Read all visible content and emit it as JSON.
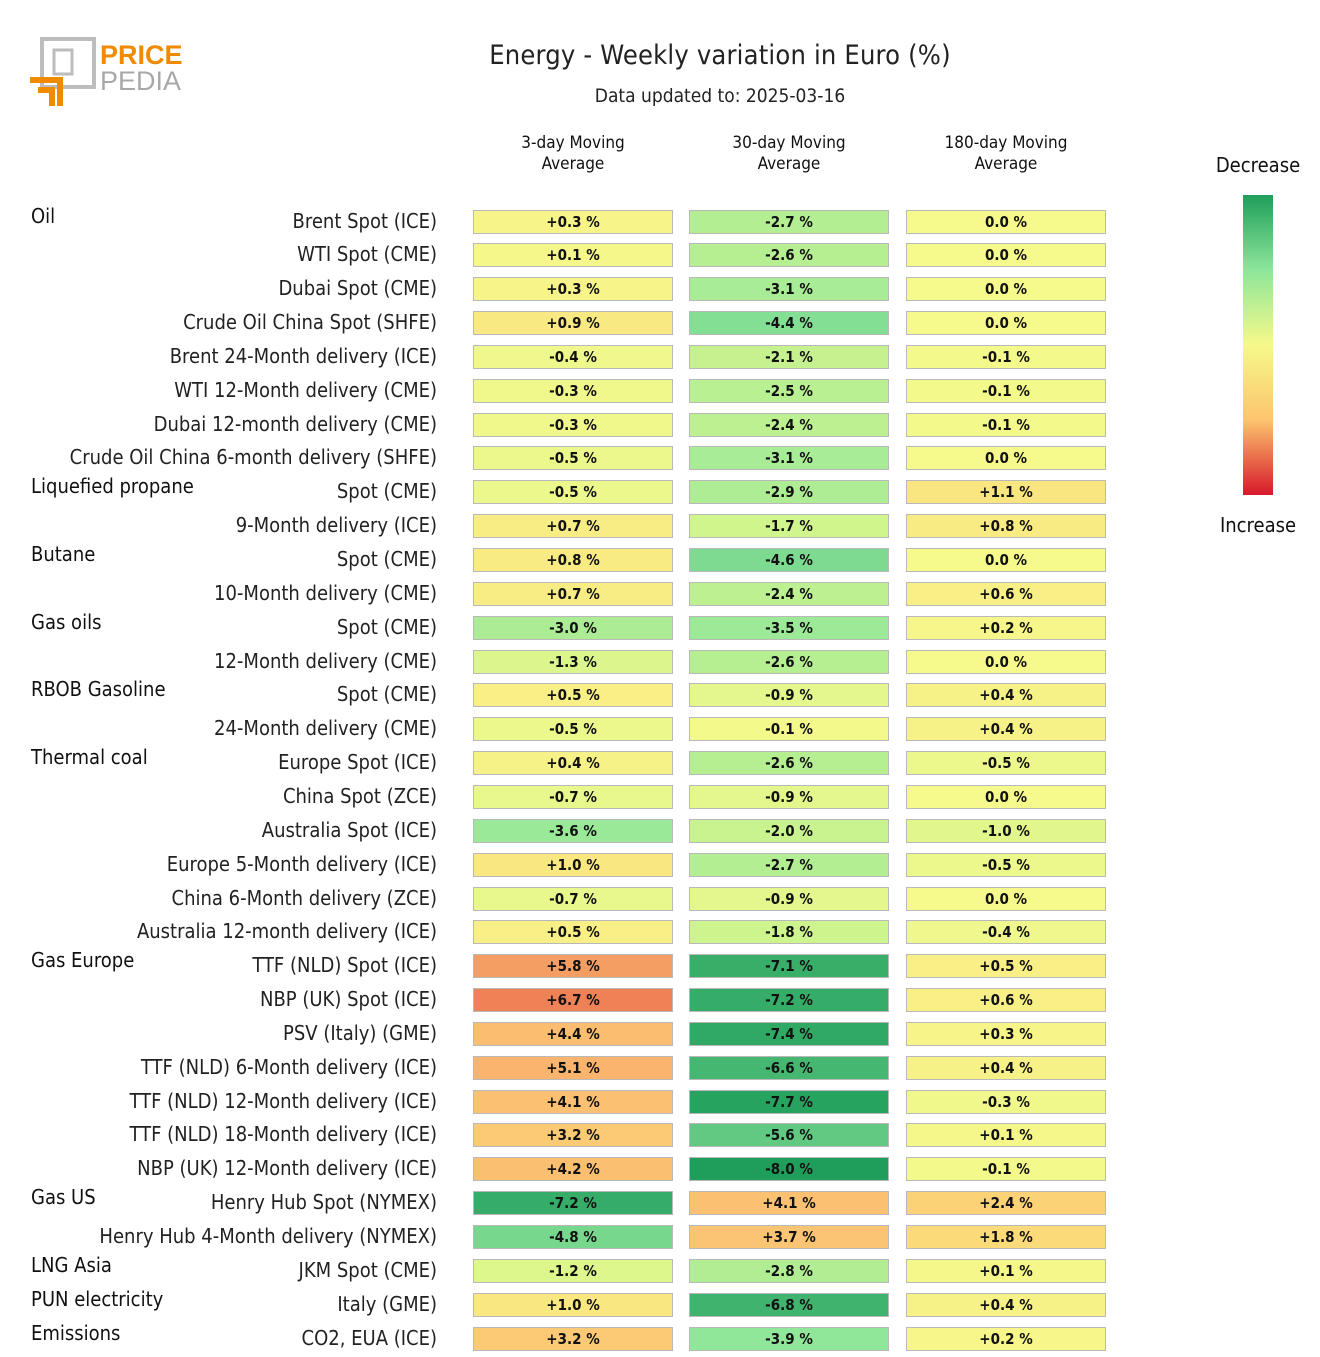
{
  "logo": {
    "text_top": "PRICE",
    "text_bottom": "PEDIA"
  },
  "title": "Energy - Weekly variation in Euro (%)",
  "subtitle": "Data updated to: 2025-03-16",
  "legend": {
    "top": "Decrease",
    "bottom": "Increase"
  },
  "chart_data": {
    "type": "heatmap",
    "title": "Energy - Weekly variation in Euro (%)",
    "subtitle": "Data updated to: 2025-03-16",
    "columns": [
      "3-day Moving Average",
      "30-day Moving Average",
      "180-day Moving Average"
    ],
    "column_lines": [
      [
        "3-day Moving",
        "Average"
      ],
      [
        "30-day Moving",
        "Average"
      ],
      [
        "180-day Moving",
        "Average"
      ]
    ],
    "unit": "%",
    "colorscale": {
      "negative": "Decrease (green)",
      "positive": "Increase (red)"
    },
    "rows": [
      {
        "group": "Oil",
        "label": "Brent Spot (ICE)",
        "values": [
          0.3,
          -2.7,
          0.0
        ]
      },
      {
        "group": "",
        "label": "WTI Spot (CME)",
        "values": [
          0.1,
          -2.6,
          0.0
        ]
      },
      {
        "group": "",
        "label": "Dubai Spot (CME)",
        "values": [
          0.3,
          -3.1,
          0.0
        ]
      },
      {
        "group": "",
        "label": "Crude Oil China Spot (SHFE)",
        "values": [
          0.9,
          -4.4,
          0.0
        ]
      },
      {
        "group": "",
        "label": "Brent 24-Month delivery (ICE)",
        "values": [
          -0.4,
          -2.1,
          -0.1
        ]
      },
      {
        "group": "",
        "label": "WTI 12-Month delivery (CME)",
        "values": [
          -0.3,
          -2.5,
          -0.1
        ]
      },
      {
        "group": "",
        "label": "Dubai 12-month delivery (CME)",
        "values": [
          -0.3,
          -2.4,
          -0.1
        ]
      },
      {
        "group": "",
        "label": "Crude Oil China 6-month delivery (SHFE)",
        "values": [
          -0.5,
          -3.1,
          0.0
        ]
      },
      {
        "group": "Liquefied propane",
        "label": "Spot (CME)",
        "values": [
          -0.5,
          -2.9,
          1.1
        ]
      },
      {
        "group": "",
        "label": "9-Month delivery (ICE)",
        "values": [
          0.7,
          -1.7,
          0.8
        ]
      },
      {
        "group": "Butane",
        "label": "Spot (CME)",
        "values": [
          0.8,
          -4.6,
          0.0
        ]
      },
      {
        "group": "",
        "label": "10-Month delivery (CME)",
        "values": [
          0.7,
          -2.4,
          0.6
        ]
      },
      {
        "group": "Gas oils",
        "label": "Spot (CME)",
        "values": [
          -3.0,
          -3.5,
          0.2
        ]
      },
      {
        "group": "",
        "label": "12-Month delivery (CME)",
        "values": [
          -1.3,
          -2.6,
          0.0
        ]
      },
      {
        "group": "RBOB Gasoline",
        "label": "Spot (CME)",
        "values": [
          0.5,
          -0.9,
          0.4
        ]
      },
      {
        "group": "",
        "label": "24-Month delivery (CME)",
        "values": [
          -0.5,
          -0.1,
          0.4
        ]
      },
      {
        "group": "Thermal coal",
        "label": "Europe Spot (ICE)",
        "values": [
          0.4,
          -2.6,
          -0.5
        ]
      },
      {
        "group": "",
        "label": "China Spot (ZCE)",
        "values": [
          -0.7,
          -0.9,
          0.0
        ]
      },
      {
        "group": "",
        "label": "Australia Spot (ICE)",
        "values": [
          -3.6,
          -2.0,
          -1.0
        ]
      },
      {
        "group": "",
        "label": "Europe 5-Month delivery (ICE)",
        "values": [
          1.0,
          -2.7,
          -0.5
        ]
      },
      {
        "group": "",
        "label": "China 6-Month delivery (ZCE)",
        "values": [
          -0.7,
          -0.9,
          0.0
        ]
      },
      {
        "group": "",
        "label": "Australia 12-month delivery (ICE)",
        "values": [
          0.5,
          -1.8,
          -0.4
        ]
      },
      {
        "group": "Gas Europe",
        "label": "TTF (NLD) Spot (ICE)",
        "values": [
          5.8,
          -7.1,
          0.5
        ]
      },
      {
        "group": "",
        "label": "NBP (UK) Spot (ICE)",
        "values": [
          6.7,
          -7.2,
          0.6
        ]
      },
      {
        "group": "",
        "label": "PSV (Italy) (GME)",
        "values": [
          4.4,
          -7.4,
          0.3
        ]
      },
      {
        "group": "",
        "label": "TTF (NLD) 6-Month delivery (ICE)",
        "values": [
          5.1,
          -6.6,
          0.4
        ]
      },
      {
        "group": "",
        "label": "TTF (NLD) 12-Month delivery (ICE)",
        "values": [
          4.1,
          -7.7,
          -0.3
        ]
      },
      {
        "group": "",
        "label": "TTF (NLD) 18-Month delivery (ICE)",
        "values": [
          3.2,
          -5.6,
          0.1
        ]
      },
      {
        "group": "",
        "label": "NBP (UK) 12-Month delivery (ICE)",
        "values": [
          4.2,
          -8.0,
          -0.1
        ]
      },
      {
        "group": "Gas US",
        "label": "Henry Hub Spot (NYMEX)",
        "values": [
          -7.2,
          4.1,
          2.4
        ]
      },
      {
        "group": "",
        "label": "Henry Hub 4-Month delivery (NYMEX)",
        "values": [
          -4.8,
          3.7,
          1.8
        ]
      },
      {
        "group": "LNG Asia",
        "label": "JKM Spot (CME)",
        "values": [
          -1.2,
          -2.8,
          0.1
        ]
      },
      {
        "group": "PUN electricity",
        "label": "Italy (GME)",
        "values": [
          1.0,
          -6.8,
          0.4
        ]
      },
      {
        "group": "Emissions",
        "label": "CO2, EUA (ICE)",
        "values": [
          3.2,
          -3.9,
          0.2
        ]
      }
    ]
  }
}
